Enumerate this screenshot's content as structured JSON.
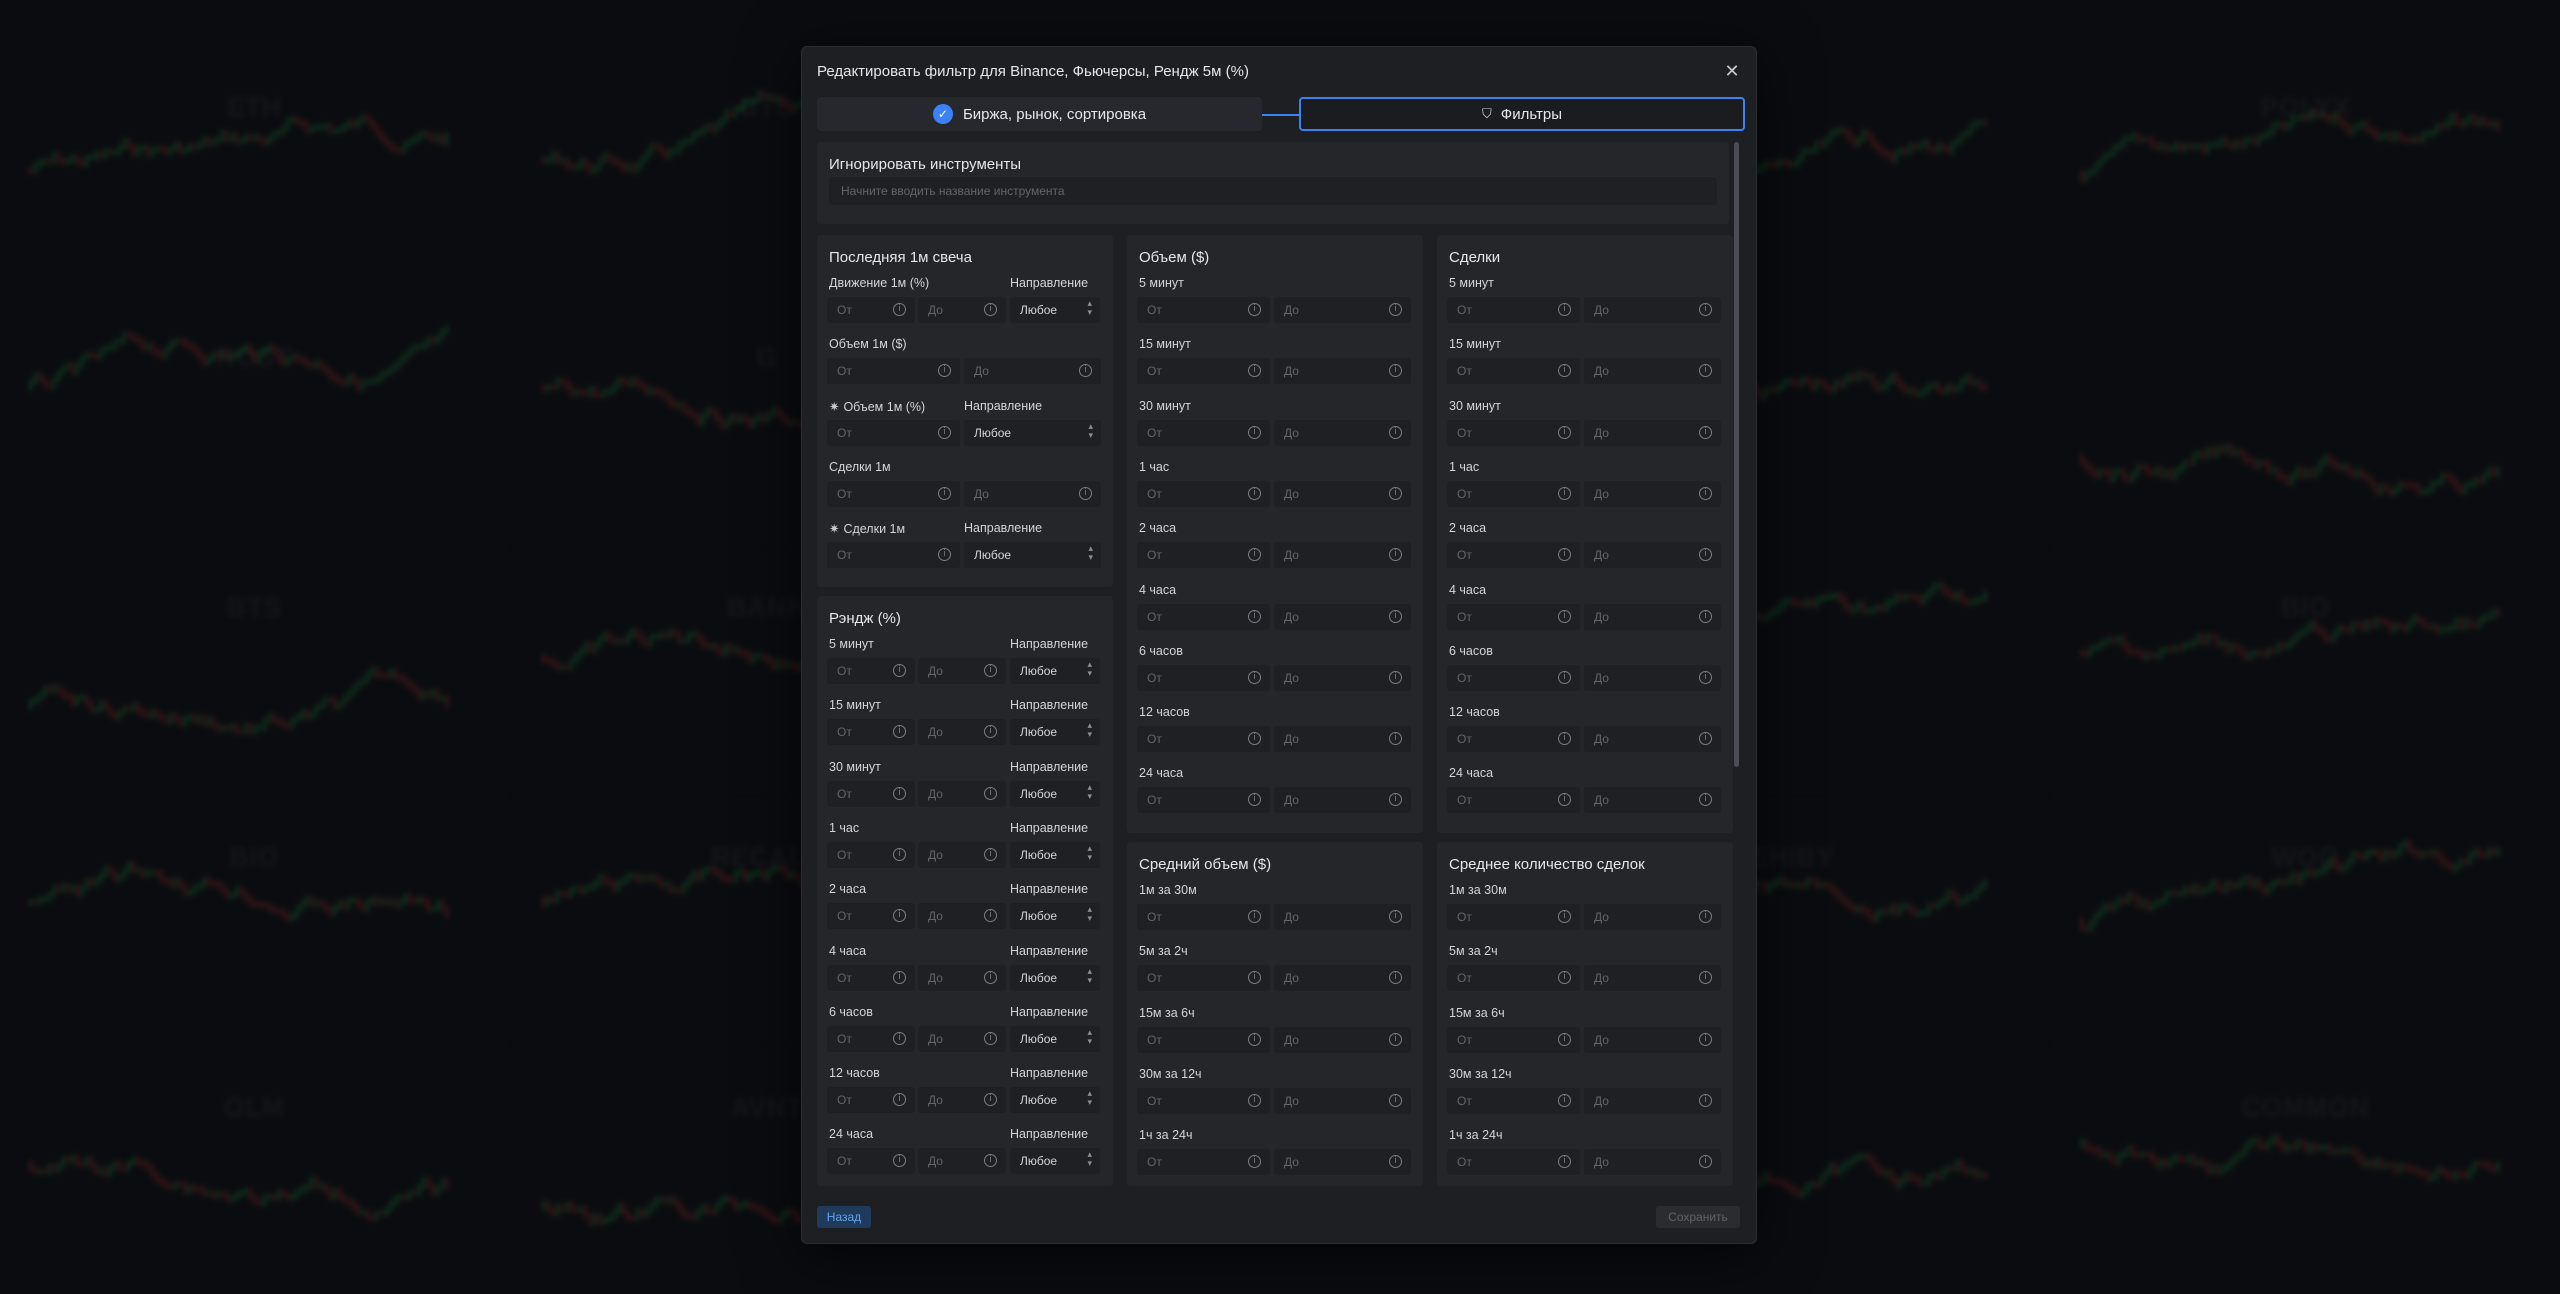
{
  "background": {
    "tickers": [
      "ETH",
      "BTC",
      "",
      "",
      "POLYX",
      "ROST",
      "G",
      "",
      "",
      "",
      "BTS",
      "BANK",
      "",
      "",
      "BIO",
      "BIO",
      "RECALL",
      "",
      "SHIBY",
      "WOO",
      "OLM",
      "AVNT",
      "",
      "",
      "COMMON"
    ],
    "colors": {
      "up": "#22c55e",
      "down": "#ef4444"
    }
  },
  "modal": {
    "title": "Редактировать фильтр для Binance, Фьючерсы, Рендж 5м (%)",
    "close_icon": "close-icon",
    "steps": [
      {
        "label": "Биржа, рынок, сортировка",
        "icon": "check-icon",
        "completed": true
      },
      {
        "label": "Фильтры",
        "icon": "filter-icon",
        "active": true
      }
    ],
    "ignore": {
      "title": "Игнорировать инструменты",
      "placeholder": "Начните вводить название инструмента"
    },
    "field": {
      "from": "От",
      "to": "До"
    },
    "direction_label": "Направление",
    "direction_value": "Любое",
    "last_candle": {
      "title": "Последняя 1м свеча",
      "rows": [
        {
          "label": "Движение 1м (%)",
          "direction": true
        },
        {
          "label": "Объем 1м ($)",
          "direction": false
        },
        {
          "label": "Объем 1м (%)",
          "spark": "✷",
          "direction": true
        },
        {
          "label": "Сделки 1м",
          "direction": false
        },
        {
          "label": "Сделки 1м",
          "spark": "✷",
          "direction": true
        }
      ]
    },
    "range": {
      "title": "Рэндж (%)",
      "rows": [
        "5 минут",
        "15 минут",
        "30 минут",
        "1 час",
        "2 часа",
        "4 часа",
        "6 часов",
        "12 часов",
        "24 часа"
      ]
    },
    "volume": {
      "title": "Объем ($)",
      "rows": [
        "5 минут",
        "15 минут",
        "30 минут",
        "1 час",
        "2 часа",
        "4 часа",
        "6 часов",
        "12 часов",
        "24 часа"
      ]
    },
    "trades": {
      "title": "Сделки",
      "rows": [
        "5 минут",
        "15 минут",
        "30 минут",
        "1 час",
        "2 часа",
        "4 часа",
        "6 часов",
        "12 часов",
        "24 часа"
      ]
    },
    "avg_volume": {
      "title": "Средний объем ($)",
      "rows": [
        "1м за 30м",
        "5м за 2ч",
        "15м за 6ч",
        "30м за 12ч",
        "1ч за 24ч"
      ]
    },
    "avg_trades": {
      "title": "Среднее количество сделок",
      "rows": [
        "1м за 30м",
        "5м за 2ч",
        "15м за 6ч",
        "30м за 12ч",
        "1ч за 24ч"
      ]
    },
    "back_label": "Назад",
    "save_label": "Сохранить",
    "accent": "#3b82f6"
  }
}
